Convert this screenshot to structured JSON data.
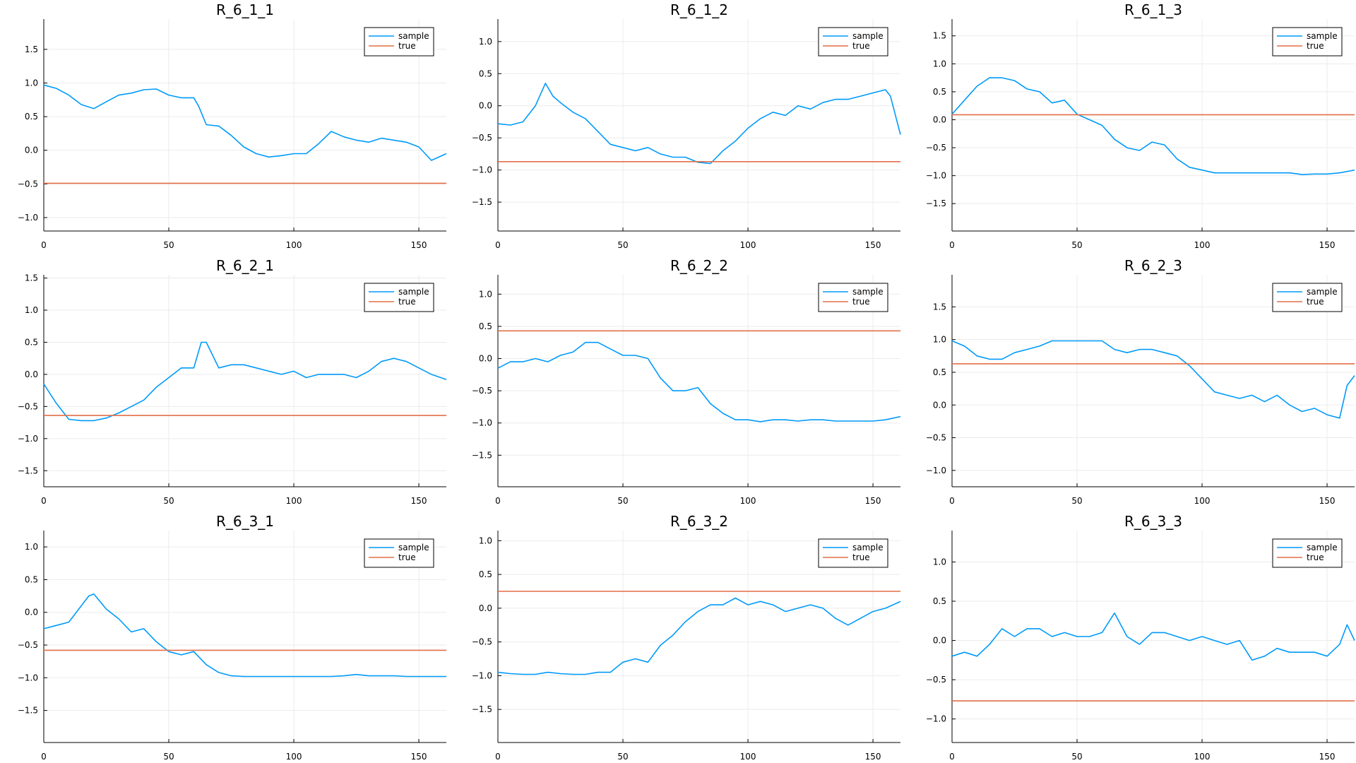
{
  "colors": {
    "sample": "#009AFA",
    "true": "#E36F47",
    "grid": "#EBEBEB",
    "axis": "#000000"
  },
  "chart_data": [
    {
      "type": "line",
      "title": "R_6_1_1",
      "xlim": [
        0,
        161
      ],
      "ylim": [
        -1.2,
        1.95
      ],
      "xticks": [
        0,
        50,
        100,
        150
      ],
      "xtick_labels": [
        "0",
        "50",
        "100",
        "150"
      ],
      "yticks": [
        -1.0,
        -0.5,
        0.0,
        0.5,
        1.0,
        1.5
      ],
      "ytick_labels": [
        "−1.0",
        "−0.5",
        "0.0",
        "0.5",
        "1.0",
        "1.5"
      ],
      "legend": "top-right",
      "grid": true,
      "series": [
        {
          "name": "sample",
          "x": [
            0,
            5,
            10,
            15,
            20,
            25,
            30,
            35,
            40,
            45,
            50,
            55,
            60,
            62,
            65,
            70,
            75,
            80,
            85,
            90,
            95,
            100,
            105,
            110,
            115,
            120,
            125,
            130,
            135,
            140,
            145,
            150,
            155,
            161
          ],
          "y": [
            0.97,
            0.92,
            0.82,
            0.68,
            0.62,
            0.72,
            0.82,
            0.85,
            0.9,
            0.91,
            0.82,
            0.78,
            0.78,
            0.65,
            0.38,
            0.36,
            0.22,
            0.05,
            -0.05,
            -0.1,
            -0.08,
            -0.05,
            -0.05,
            0.1,
            0.28,
            0.2,
            0.15,
            0.12,
            0.18,
            0.15,
            0.12,
            0.05,
            -0.15,
            -0.05
          ]
        },
        {
          "name": "true",
          "x": [
            0,
            161
          ],
          "y": [
            -0.49,
            -0.49
          ]
        }
      ]
    },
    {
      "type": "line",
      "title": "R_6_1_2",
      "xlim": [
        0,
        161
      ],
      "ylim": [
        -1.95,
        1.35
      ],
      "xticks": [
        0,
        50,
        100,
        150
      ],
      "xtick_labels": [
        "0",
        "50",
        "100",
        "150"
      ],
      "yticks": [
        -1.5,
        -1.0,
        -0.5,
        0.0,
        0.5,
        1.0
      ],
      "ytick_labels": [
        "−1.5",
        "−1.0",
        "−0.5",
        "0.0",
        "0.5",
        "1.0"
      ],
      "legend": "top-right",
      "grid": true,
      "series": [
        {
          "name": "sample",
          "x": [
            0,
            5,
            10,
            15,
            19,
            22,
            25,
            30,
            35,
            40,
            45,
            50,
            55,
            60,
            65,
            70,
            75,
            80,
            85,
            90,
            95,
            100,
            105,
            110,
            115,
            120,
            125,
            130,
            135,
            140,
            145,
            150,
            155,
            157,
            161
          ],
          "y": [
            -0.28,
            -0.3,
            -0.25,
            0.0,
            0.35,
            0.15,
            0.05,
            -0.1,
            -0.2,
            -0.4,
            -0.6,
            -0.65,
            -0.7,
            -0.65,
            -0.75,
            -0.8,
            -0.8,
            -0.88,
            -0.9,
            -0.7,
            -0.55,
            -0.35,
            -0.2,
            -0.1,
            -0.15,
            0.0,
            -0.05,
            0.05,
            0.1,
            0.1,
            0.15,
            0.2,
            0.25,
            0.15,
            -0.45
          ]
        },
        {
          "name": "true",
          "x": [
            0,
            161
          ],
          "y": [
            -0.87,
            -0.87
          ]
        }
      ]
    },
    {
      "type": "line",
      "title": "R_6_1_3",
      "xlim": [
        0,
        161
      ],
      "ylim": [
        -1.99,
        1.8
      ],
      "xticks": [
        0,
        50,
        100,
        150
      ],
      "xtick_labels": [
        "0",
        "50",
        "100",
        "150"
      ],
      "yticks": [
        -1.5,
        -1.0,
        -0.5,
        0.0,
        0.5,
        1.0,
        1.5
      ],
      "ytick_labels": [
        "−1.5",
        "−1.0",
        "−0.5",
        "0.0",
        "0.5",
        "1.0",
        "1.5"
      ],
      "legend": "top-right",
      "grid": true,
      "series": [
        {
          "name": "sample",
          "x": [
            0,
            5,
            10,
            15,
            20,
            25,
            30,
            35,
            40,
            45,
            50,
            55,
            60,
            65,
            70,
            75,
            80,
            85,
            90,
            95,
            100,
            105,
            110,
            115,
            120,
            125,
            130,
            135,
            140,
            145,
            150,
            155,
            161
          ],
          "y": [
            0.1,
            0.35,
            0.6,
            0.75,
            0.75,
            0.7,
            0.55,
            0.5,
            0.3,
            0.35,
            0.1,
            0.0,
            -0.1,
            -0.35,
            -0.5,
            -0.55,
            -0.4,
            -0.45,
            -0.7,
            -0.85,
            -0.9,
            -0.95,
            -0.95,
            -0.95,
            -0.95,
            -0.95,
            -0.95,
            -0.95,
            -0.98,
            -0.97,
            -0.97,
            -0.95,
            -0.9
          ]
        },
        {
          "name": "true",
          "x": [
            0,
            161
          ],
          "y": [
            0.09,
            0.09
          ]
        }
      ]
    },
    {
      "type": "line",
      "title": "R_6_2_1",
      "xlim": [
        0,
        161
      ],
      "ylim": [
        -1.75,
        1.55
      ],
      "xticks": [
        0,
        50,
        100,
        150
      ],
      "xtick_labels": [
        "0",
        "50",
        "100",
        "150"
      ],
      "yticks": [
        -1.5,
        -1.0,
        -0.5,
        0.0,
        0.5,
        1.0,
        1.5
      ],
      "ytick_labels": [
        "−1.5",
        "−1.0",
        "−0.5",
        "0.0",
        "0.5",
        "1.0",
        "1.5"
      ],
      "legend": "top-right",
      "grid": true,
      "series": [
        {
          "name": "sample",
          "x": [
            0,
            5,
            10,
            15,
            20,
            25,
            30,
            35,
            40,
            45,
            50,
            55,
            60,
            63,
            65,
            70,
            75,
            80,
            85,
            90,
            95,
            100,
            105,
            110,
            115,
            120,
            125,
            130,
            135,
            140,
            145,
            150,
            155,
            161
          ],
          "y": [
            -0.15,
            -0.45,
            -0.7,
            -0.72,
            -0.72,
            -0.68,
            -0.6,
            -0.5,
            -0.4,
            -0.2,
            -0.05,
            0.1,
            0.1,
            0.5,
            0.5,
            0.1,
            0.15,
            0.15,
            0.1,
            0.05,
            0.0,
            0.05,
            -0.05,
            0.0,
            0.0,
            0.0,
            -0.05,
            0.05,
            0.2,
            0.25,
            0.2,
            0.1,
            0.0,
            -0.08
          ]
        },
        {
          "name": "true",
          "x": [
            0,
            161
          ],
          "y": [
            -0.64,
            -0.64
          ]
        }
      ]
    },
    {
      "type": "line",
      "title": "R_6_2_2",
      "xlim": [
        0,
        161
      ],
      "ylim": [
        -1.99,
        1.3
      ],
      "xticks": [
        0,
        50,
        100,
        150
      ],
      "xtick_labels": [
        "0",
        "50",
        "100",
        "150"
      ],
      "yticks": [
        -1.5,
        -1.0,
        -0.5,
        0.0,
        0.5,
        1.0
      ],
      "ytick_labels": [
        "−1.5",
        "−1.0",
        "−0.5",
        "0.0",
        "0.5",
        "1.0"
      ],
      "legend": "top-right",
      "grid": true,
      "series": [
        {
          "name": "sample",
          "x": [
            0,
            5,
            10,
            15,
            20,
            25,
            30,
            35,
            40,
            45,
            50,
            55,
            60,
            65,
            70,
            75,
            80,
            85,
            90,
            95,
            100,
            105,
            110,
            115,
            120,
            125,
            130,
            135,
            140,
            145,
            150,
            155,
            161
          ],
          "y": [
            -0.15,
            -0.05,
            -0.05,
            0.0,
            -0.05,
            0.05,
            0.1,
            0.25,
            0.25,
            0.15,
            0.05,
            0.05,
            0.0,
            -0.3,
            -0.5,
            -0.5,
            -0.45,
            -0.7,
            -0.85,
            -0.95,
            -0.95,
            -0.98,
            -0.95,
            -0.95,
            -0.97,
            -0.95,
            -0.95,
            -0.97,
            -0.97,
            -0.97,
            -0.97,
            -0.95,
            -0.9
          ]
        },
        {
          "name": "true",
          "x": [
            0,
            161
          ],
          "y": [
            0.43,
            0.43
          ]
        }
      ]
    },
    {
      "type": "line",
      "title": "R_6_2_3",
      "xlim": [
        0,
        161
      ],
      "ylim": [
        -1.25,
        1.99
      ],
      "xticks": [
        0,
        50,
        100,
        150
      ],
      "xtick_labels": [
        "0",
        "50",
        "100",
        "150"
      ],
      "yticks": [
        -1.0,
        -0.5,
        0.0,
        0.5,
        1.0,
        1.5
      ],
      "ytick_labels": [
        "−1.0",
        "−0.5",
        "0.0",
        "0.5",
        "1.0",
        "1.5"
      ],
      "legend": "top-right",
      "grid": true,
      "series": [
        {
          "name": "sample",
          "x": [
            0,
            5,
            10,
            15,
            20,
            25,
            30,
            35,
            40,
            45,
            50,
            55,
            60,
            65,
            70,
            75,
            80,
            85,
            90,
            95,
            100,
            105,
            110,
            115,
            120,
            125,
            130,
            135,
            140,
            145,
            150,
            155,
            158,
            161
          ],
          "y": [
            0.98,
            0.9,
            0.75,
            0.7,
            0.7,
            0.8,
            0.85,
            0.9,
            0.98,
            0.98,
            0.98,
            0.98,
            0.98,
            0.85,
            0.8,
            0.85,
            0.85,
            0.8,
            0.75,
            0.6,
            0.4,
            0.2,
            0.15,
            0.1,
            0.15,
            0.05,
            0.15,
            0.0,
            -0.1,
            -0.05,
            -0.15,
            -0.2,
            0.3,
            0.45
          ]
        },
        {
          "name": "true",
          "x": [
            0,
            161
          ],
          "y": [
            0.63,
            0.63
          ]
        }
      ]
    },
    {
      "type": "line",
      "title": "R_6_3_1",
      "xlim": [
        0,
        161
      ],
      "ylim": [
        -1.99,
        1.25
      ],
      "xticks": [
        0,
        50,
        100,
        150
      ],
      "xtick_labels": [
        "0",
        "50",
        "100",
        "150"
      ],
      "yticks": [
        -1.5,
        -1.0,
        -0.5,
        0.0,
        0.5,
        1.0
      ],
      "ytick_labels": [
        "−1.5",
        "−1.0",
        "−0.5",
        "0.0",
        "0.5",
        "1.0"
      ],
      "legend": "top-right",
      "grid": true,
      "series": [
        {
          "name": "sample",
          "x": [
            0,
            5,
            10,
            15,
            18,
            20,
            25,
            30,
            35,
            40,
            45,
            50,
            55,
            60,
            65,
            70,
            75,
            80,
            85,
            90,
            95,
            100,
            105,
            110,
            115,
            120,
            125,
            130,
            135,
            140,
            145,
            150,
            155,
            161
          ],
          "y": [
            -0.25,
            -0.2,
            -0.15,
            0.1,
            0.25,
            0.28,
            0.05,
            -0.1,
            -0.3,
            -0.25,
            -0.45,
            -0.6,
            -0.65,
            -0.6,
            -0.8,
            -0.92,
            -0.97,
            -0.98,
            -0.98,
            -0.98,
            -0.98,
            -0.98,
            -0.98,
            -0.98,
            -0.98,
            -0.97,
            -0.95,
            -0.97,
            -0.97,
            -0.97,
            -0.98,
            -0.98,
            -0.98,
            -0.98
          ]
        },
        {
          "name": "true",
          "x": [
            0,
            161
          ],
          "y": [
            -0.58,
            -0.58
          ]
        }
      ]
    },
    {
      "type": "line",
      "title": "R_6_3_2",
      "xlim": [
        0,
        161
      ],
      "ylim": [
        -1.99,
        1.15
      ],
      "xticks": [
        0,
        50,
        100,
        150
      ],
      "xtick_labels": [
        "0",
        "50",
        "100",
        "150"
      ],
      "yticks": [
        -1.5,
        -1.0,
        -0.5,
        0.0,
        0.5,
        1.0
      ],
      "ytick_labels": [
        "−1.5",
        "−1.0",
        "−0.5",
        "0.0",
        "0.5",
        "1.0"
      ],
      "legend": "top-right",
      "grid": true,
      "series": [
        {
          "name": "sample",
          "x": [
            0,
            5,
            10,
            15,
            20,
            25,
            30,
            35,
            40,
            45,
            50,
            55,
            60,
            65,
            70,
            75,
            80,
            85,
            90,
            95,
            100,
            105,
            110,
            115,
            120,
            125,
            130,
            135,
            140,
            145,
            150,
            155,
            161
          ],
          "y": [
            -0.95,
            -0.97,
            -0.98,
            -0.98,
            -0.95,
            -0.97,
            -0.98,
            -0.98,
            -0.95,
            -0.95,
            -0.8,
            -0.75,
            -0.8,
            -0.55,
            -0.4,
            -0.2,
            -0.05,
            0.05,
            0.05,
            0.15,
            0.05,
            0.1,
            0.05,
            -0.05,
            0.0,
            0.05,
            0.0,
            -0.15,
            -0.25,
            -0.15,
            -0.05,
            0.0,
            0.1
          ]
        },
        {
          "name": "true",
          "x": [
            0,
            161
          ],
          "y": [
            0.25,
            0.25
          ]
        }
      ]
    },
    {
      "type": "line",
      "title": "R_6_3_3",
      "xlim": [
        0,
        161
      ],
      "ylim": [
        -1.3,
        1.4
      ],
      "xticks": [
        0,
        50,
        100,
        150
      ],
      "xtick_labels": [
        "0",
        "50",
        "100",
        "150"
      ],
      "yticks": [
        -1.0,
        -0.5,
        0.0,
        0.5,
        1.0
      ],
      "ytick_labels": [
        "−1.0",
        "−0.5",
        "0.0",
        "0.5",
        "1.0"
      ],
      "legend": "top-right",
      "grid": true,
      "series": [
        {
          "name": "sample",
          "x": [
            0,
            5,
            10,
            15,
            20,
            25,
            30,
            35,
            40,
            45,
            50,
            55,
            60,
            65,
            70,
            75,
            80,
            85,
            90,
            95,
            100,
            105,
            110,
            115,
            120,
            125,
            130,
            135,
            140,
            145,
            150,
            155,
            158,
            161
          ],
          "y": [
            -0.2,
            -0.15,
            -0.2,
            -0.05,
            0.15,
            0.05,
            0.15,
            0.15,
            0.05,
            0.1,
            0.05,
            0.05,
            0.1,
            0.35,
            0.05,
            -0.05,
            0.1,
            0.1,
            0.05,
            0.0,
            0.05,
            0.0,
            -0.05,
            0.0,
            -0.25,
            -0.2,
            -0.1,
            -0.15,
            -0.15,
            -0.15,
            -0.2,
            -0.05,
            0.2,
            0.0
          ]
        },
        {
          "name": "true",
          "x": [
            0,
            161
          ],
          "y": [
            -0.77,
            -0.77
          ]
        }
      ]
    }
  ]
}
